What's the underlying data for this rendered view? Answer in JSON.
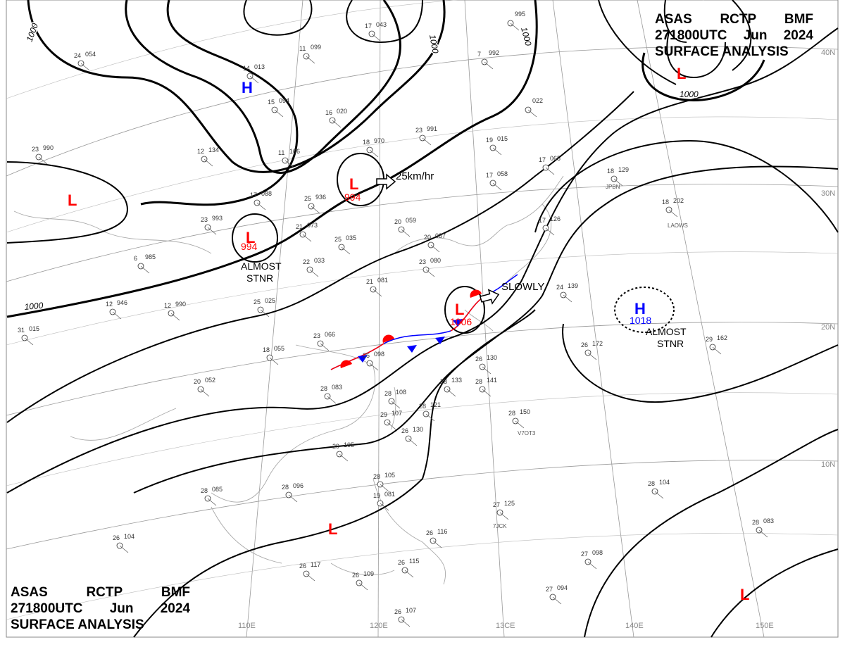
{
  "header": {
    "agency": "ASAS",
    "station": "RCTP",
    "office": "BMF",
    "time": "271800UTC",
    "month": "Jun",
    "year": "2024",
    "product": "SURFACE ANALYSIS"
  },
  "graticule": {
    "longitudes": [
      "110E",
      "120E",
      "13CE",
      "140E",
      "150E"
    ],
    "latitudes": [
      "40N",
      "30N",
      "20N",
      "10N"
    ]
  },
  "isobar_labels": [
    "1000",
    "1000",
    "1000",
    "1000",
    "1000"
  ],
  "centers": [
    {
      "type": "H",
      "value": "",
      "color": "#0000ff"
    },
    {
      "type": "L",
      "value": "",
      "color": "#ff0000"
    },
    {
      "type": "L",
      "value": "994",
      "color": "#ff0000"
    },
    {
      "type": "L",
      "value": "994",
      "color": "#ff0000"
    },
    {
      "type": "L",
      "value": "1006",
      "color": "#ff0000"
    },
    {
      "type": "L",
      "value": "",
      "color": "#ff0000"
    },
    {
      "type": "H",
      "value": "1018",
      "color": "#0000ff"
    },
    {
      "type": "L",
      "value": "",
      "color": "#ff0000"
    },
    {
      "type": "L",
      "value": "",
      "color": "#ff0000"
    }
  ],
  "annotations": {
    "motion_1": "25km/hr",
    "stnr_1_a": "ALMOST",
    "stnr_1_b": "STNR",
    "slowly": "SLOWLY",
    "stnr_2_a": "ALMOST",
    "stnr_2_b": "STNR"
  },
  "stations": [
    {
      "t": "23",
      "p": "990"
    },
    {
      "t": "23",
      "p": "993"
    },
    {
      "t": "6",
      "p": "985"
    },
    {
      "t": "12",
      "p": "946"
    },
    {
      "t": "12",
      "p": "990"
    },
    {
      "t": "31",
      "p": "015"
    },
    {
      "t": "25",
      "p": "025"
    },
    {
      "t": "23",
      "p": "066"
    },
    {
      "t": "18",
      "p": "055"
    },
    {
      "t": "20",
      "p": "052"
    },
    {
      "t": "28",
      "p": "083"
    },
    {
      "t": "25",
      "p": "098"
    },
    {
      "t": "28",
      "p": "108"
    },
    {
      "t": "29",
      "p": "107"
    },
    {
      "t": "26",
      "p": "130"
    },
    {
      "t": "29",
      "p": "105"
    },
    {
      "t": "28",
      "p": "096"
    },
    {
      "t": "28",
      "p": "085"
    },
    {
      "t": "26",
      "p": "104"
    },
    {
      "t": "26",
      "p": "117"
    },
    {
      "t": "26",
      "p": "109"
    },
    {
      "t": "26",
      "p": "107"
    },
    {
      "t": "28",
      "p": "105"
    },
    {
      "t": "19",
      "p": "081"
    },
    {
      "t": "26",
      "p": "115"
    },
    {
      "t": "26",
      "p": "116"
    },
    {
      "t": "27",
      "p": "125"
    },
    {
      "t": "28",
      "p": "150"
    },
    {
      "t": "28",
      "p": "133"
    },
    {
      "t": "28",
      "p": "141"
    },
    {
      "t": "26",
      "p": "130"
    },
    {
      "t": "28",
      "p": "121"
    },
    {
      "t": "22",
      "p": "033"
    },
    {
      "t": "21",
      "p": "081"
    },
    {
      "t": "25",
      "p": "035"
    },
    {
      "t": "20",
      "p": "059"
    },
    {
      "t": "20",
      "p": "087"
    },
    {
      "t": "23",
      "p": "080"
    },
    {
      "t": "21",
      "p": "073"
    },
    {
      "t": "25",
      "p": "936"
    },
    {
      "t": "17",
      "p": "088"
    },
    {
      "t": "18",
      "p": "970"
    },
    {
      "t": "23",
      "p": "991"
    },
    {
      "t": "19",
      "p": "015"
    },
    {
      "t": "17",
      "p": "058"
    },
    {
      "t": "17",
      "p": "065"
    },
    {
      "t": "17",
      "p": "126"
    },
    {
      "t": "24",
      "p": "139"
    },
    {
      "t": "18",
      "p": "129"
    },
    {
      "t": "18",
      "p": "202"
    },
    {
      "t": "26",
      "p": "172"
    },
    {
      "t": "29",
      "p": "162"
    },
    {
      "t": "28",
      "p": "104"
    },
    {
      "t": "28",
      "p": "083"
    },
    {
      "t": "27",
      "p": "098"
    },
    {
      "t": "27",
      "p": "094"
    },
    {
      "t": "14",
      "p": "013"
    },
    {
      "t": "15",
      "p": "094"
    },
    {
      "t": "11",
      "p": "099"
    },
    {
      "t": "17",
      "p": "043"
    },
    {
      "t": "16",
      "p": "020"
    },
    {
      "t": "12",
      "p": "134"
    },
    {
      "t": "11",
      "p": "106"
    },
    {
      "t": "7",
      "p": "992"
    },
    {
      "t": "",
      "p": "995"
    },
    {
      "t": "",
      "p": "022"
    },
    {
      "t": "24",
      "p": "054"
    }
  ],
  "station_ids": [
    "JPBN",
    "LAOWS",
    "V7OT3",
    "7JCK"
  ]
}
